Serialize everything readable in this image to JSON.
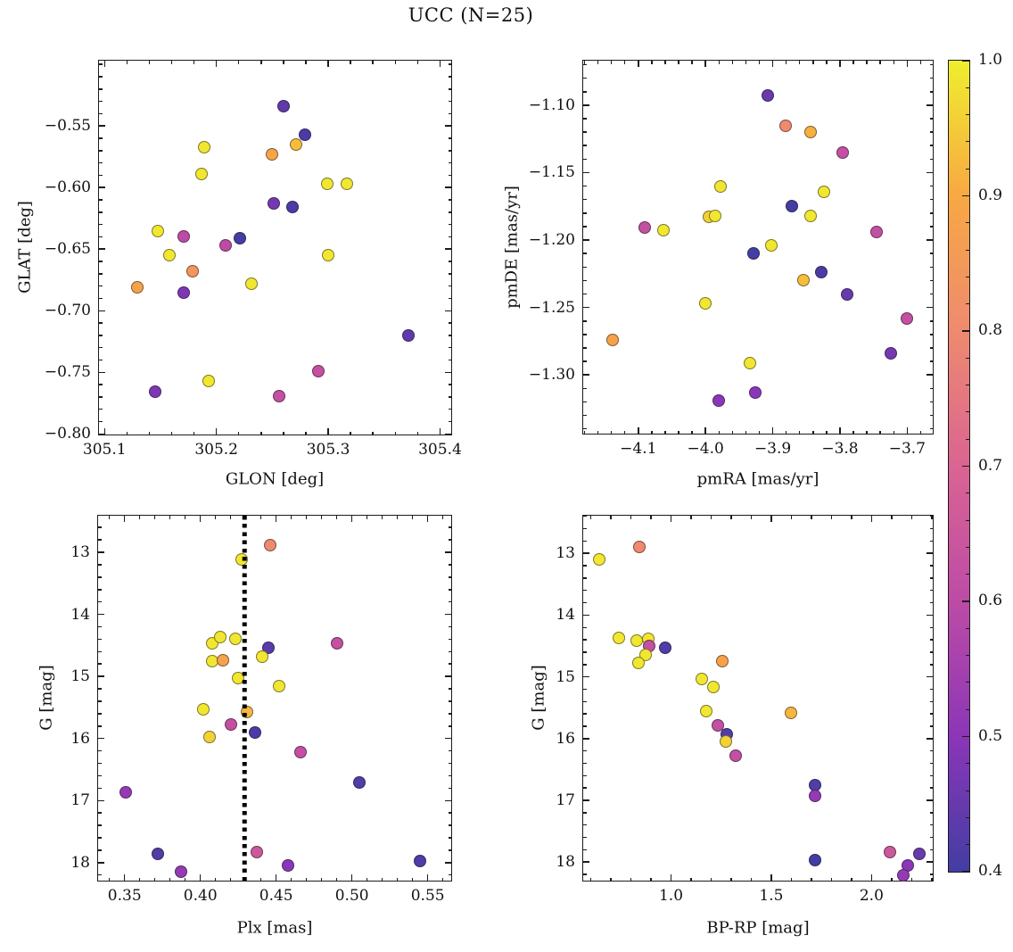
{
  "title": "UCC (N=25)",
  "colorbar": {
    "vmin": 0.4,
    "vmax": 1.0,
    "tick_values": [
      1.0,
      0.9,
      0.8,
      0.7,
      0.6,
      0.5,
      0.4
    ],
    "tick_labels": [
      "1.0",
      "0.9",
      "0.8",
      "0.7",
      "0.6",
      "0.5",
      "0.4"
    ],
    "minor_step": 0.02,
    "anchors": [
      {
        "v": 0.4,
        "color": "#433da4"
      },
      {
        "v": 0.5,
        "color": "#8b36b8"
      },
      {
        "v": 0.6,
        "color": "#bd4ba6"
      },
      {
        "v": 0.7,
        "color": "#da6492"
      },
      {
        "v": 0.8,
        "color": "#ee8a6f"
      },
      {
        "v": 0.9,
        "color": "#f8a843"
      },
      {
        "v": 1.0,
        "color": "#f0ee2e"
      }
    ]
  },
  "chart_data": [
    {
      "type": "scatter",
      "xlabel": "GLON [deg]",
      "ylabel": "GLAT [deg]",
      "xlim": [
        305.095,
        305.41
      ],
      "ylim": [
        -0.497,
        -0.8005
      ],
      "xticks": {
        "values": [
          305.1,
          305.2,
          305.3,
          305.4
        ],
        "labels": [
          "305.1",
          "305.2",
          "305.3",
          "305.4"
        ],
        "minor_step": 0.02
      },
      "yticks": {
        "values": [
          -0.55,
          -0.6,
          -0.65,
          -0.7,
          -0.75,
          -0.8
        ],
        "labels": [
          "−0.55",
          "−0.60",
          "−0.65",
          "−0.70",
          "−0.75",
          "−0.80"
        ],
        "minor_step": 0.01
      },
      "points": [
        [
          305.26,
          -0.534,
          0.44
        ],
        [
          305.279,
          -0.557,
          0.41
        ],
        [
          305.271,
          -0.565,
          0.93
        ],
        [
          305.25,
          -0.573,
          0.89
        ],
        [
          305.189,
          -0.567,
          0.99
        ],
        [
          305.187,
          -0.589,
          0.99
        ],
        [
          305.299,
          -0.597,
          0.99
        ],
        [
          305.317,
          -0.597,
          0.99
        ],
        [
          305.251,
          -0.613,
          0.47
        ],
        [
          305.268,
          -0.616,
          0.41
        ],
        [
          305.148,
          -0.635,
          0.99
        ],
        [
          305.171,
          -0.64,
          0.6
        ],
        [
          305.208,
          -0.647,
          0.6
        ],
        [
          305.221,
          -0.641,
          0.4
        ],
        [
          305.158,
          -0.655,
          0.99
        ],
        [
          305.3,
          -0.655,
          0.99
        ],
        [
          305.179,
          -0.668,
          0.84
        ],
        [
          305.129,
          -0.681,
          0.88
        ],
        [
          305.171,
          -0.685,
          0.48
        ],
        [
          305.231,
          -0.678,
          0.99
        ],
        [
          305.372,
          -0.72,
          0.44
        ],
        [
          305.291,
          -0.749,
          0.62
        ],
        [
          305.193,
          -0.757,
          0.99
        ],
        [
          305.145,
          -0.766,
          0.48
        ],
        [
          305.256,
          -0.769,
          0.62
        ]
      ]
    },
    {
      "type": "scatter",
      "xlabel": "pmRA [mas/yr]",
      "ylabel": "pmDE [mas/yr]",
      "xlim": [
        -4.182,
        -3.662
      ],
      "ylim": [
        -1.067,
        -1.3435
      ],
      "xticks": {
        "values": [
          -4.1,
          -4.0,
          -3.9,
          -3.8,
          -3.7
        ],
        "labels": [
          "−4.1",
          "−4.0",
          "−3.9",
          "−3.8",
          "−3.7"
        ],
        "minor_step": 0.02
      },
      "yticks": {
        "values": [
          -1.1,
          -1.15,
          -1.2,
          -1.25,
          -1.3
        ],
        "labels": [
          "−1.10",
          "−1.15",
          "−1.20",
          "−1.25",
          "−1.30"
        ],
        "minor_step": 0.01
      },
      "points": [
        [
          -3.908,
          -1.093,
          0.45
        ],
        [
          -3.881,
          -1.115,
          0.8
        ],
        [
          -3.844,
          -1.12,
          0.91
        ],
        [
          -3.796,
          -1.135,
          0.62
        ],
        [
          -3.978,
          -1.16,
          0.99
        ],
        [
          -3.824,
          -1.164,
          0.99
        ],
        [
          -3.872,
          -1.175,
          0.4
        ],
        [
          -3.995,
          -1.183,
          0.96
        ],
        [
          -3.986,
          -1.182,
          0.99
        ],
        [
          -3.844,
          -1.182,
          0.99
        ],
        [
          -4.091,
          -1.191,
          0.62
        ],
        [
          -4.062,
          -1.193,
          0.99
        ],
        [
          -3.745,
          -1.194,
          0.62
        ],
        [
          -3.902,
          -1.204,
          0.99
        ],
        [
          -3.928,
          -1.21,
          0.4
        ],
        [
          -3.828,
          -1.224,
          0.41
        ],
        [
          -3.855,
          -1.23,
          0.93
        ],
        [
          -3.789,
          -1.24,
          0.45
        ],
        [
          -4.0,
          -1.247,
          0.99
        ],
        [
          -3.7,
          -1.258,
          0.62
        ],
        [
          -4.138,
          -1.274,
          0.88
        ],
        [
          -3.724,
          -1.284,
          0.47
        ],
        [
          -3.934,
          -1.291,
          0.99
        ],
        [
          -3.926,
          -1.313,
          0.5
        ],
        [
          -3.98,
          -1.319,
          0.5
        ]
      ]
    },
    {
      "type": "scatter",
      "xlabel": "Plx [mas]",
      "ylabel": "G [mag]",
      "xlim": [
        0.3325,
        0.5655
      ],
      "ylim": [
        12.41,
        18.29
      ],
      "xticks": {
        "values": [
          0.35,
          0.4,
          0.45,
          0.5,
          0.55
        ],
        "labels": [
          "0.35",
          "0.40",
          "0.45",
          "0.50",
          "0.55"
        ],
        "minor_step": 0.01
      },
      "yticks": {
        "values": [
          13,
          14,
          15,
          16,
          17,
          18
        ],
        "labels": [
          "13",
          "14",
          "15",
          "16",
          "17",
          "18"
        ],
        "minor_step": 0.2
      },
      "vline": {
        "x": 0.429,
        "style": "dotted",
        "color": "#000000"
      },
      "points": [
        [
          0.446,
          12.89,
          0.8
        ],
        [
          0.427,
          13.11,
          0.99
        ],
        [
          0.408,
          14.46,
          0.99
        ],
        [
          0.413,
          14.37,
          0.99
        ],
        [
          0.423,
          14.4,
          0.99
        ],
        [
          0.445,
          14.54,
          0.43
        ],
        [
          0.441,
          14.68,
          0.99
        ],
        [
          0.49,
          14.46,
          0.62
        ],
        [
          0.408,
          14.76,
          0.99
        ],
        [
          0.415,
          14.74,
          0.88
        ],
        [
          0.425,
          15.02,
          0.99
        ],
        [
          0.452,
          15.16,
          0.99
        ],
        [
          0.402,
          15.53,
          0.99
        ],
        [
          0.431,
          15.57,
          0.92
        ],
        [
          0.42,
          15.77,
          0.62
        ],
        [
          0.436,
          15.9,
          0.41
        ],
        [
          0.406,
          15.98,
          0.96
        ],
        [
          0.466,
          16.22,
          0.62
        ],
        [
          0.505,
          16.71,
          0.42
        ],
        [
          0.351,
          16.86,
          0.52
        ],
        [
          0.372,
          17.86,
          0.42
        ],
        [
          0.437,
          17.83,
          0.65
        ],
        [
          0.387,
          18.15,
          0.52
        ],
        [
          0.458,
          18.04,
          0.5
        ],
        [
          0.545,
          17.97,
          0.42
        ]
      ]
    },
    {
      "type": "scatter",
      "xlabel": "BP-RP [mag]",
      "ylabel": "G [mag]",
      "xlim": [
        0.562,
        2.305
      ],
      "ylim": [
        12.39,
        18.3
      ],
      "xticks": {
        "values": [
          1.0,
          1.5,
          2.0
        ],
        "labels": [
          "1.0",
          "1.5",
          "2.0"
        ],
        "minor_step": 0.1
      },
      "yticks": {
        "values": [
          13,
          14,
          15,
          16,
          17,
          18
        ],
        "labels": [
          "13",
          "14",
          "15",
          "16",
          "17",
          "18"
        ],
        "minor_step": 0.2
      },
      "points": [
        [
          0.64,
          13.1,
          0.99
        ],
        [
          0.84,
          12.89,
          0.8
        ],
        [
          0.74,
          14.37,
          0.99
        ],
        [
          0.83,
          14.42,
          0.99
        ],
        [
          0.885,
          14.38,
          0.99
        ],
        [
          0.89,
          14.5,
          0.62
        ],
        [
          0.97,
          14.53,
          0.42
        ],
        [
          0.875,
          14.65,
          0.99
        ],
        [
          0.838,
          14.77,
          0.99
        ],
        [
          1.257,
          14.75,
          0.88
        ],
        [
          1.154,
          15.03,
          0.99
        ],
        [
          1.21,
          15.17,
          0.99
        ],
        [
          1.176,
          15.56,
          0.99
        ],
        [
          1.596,
          15.58,
          0.92
        ],
        [
          1.235,
          15.79,
          0.62
        ],
        [
          1.279,
          15.93,
          0.42
        ],
        [
          1.272,
          16.04,
          0.96
        ],
        [
          1.324,
          16.27,
          0.62
        ],
        [
          1.72,
          16.76,
          0.42
        ],
        [
          1.72,
          16.93,
          0.52
        ],
        [
          1.72,
          17.97,
          0.4
        ],
        [
          2.09,
          17.84,
          0.65
        ],
        [
          2.24,
          17.87,
          0.45
        ],
        [
          2.18,
          18.06,
          0.5
        ],
        [
          2.16,
          18.22,
          0.52
        ]
      ]
    }
  ]
}
